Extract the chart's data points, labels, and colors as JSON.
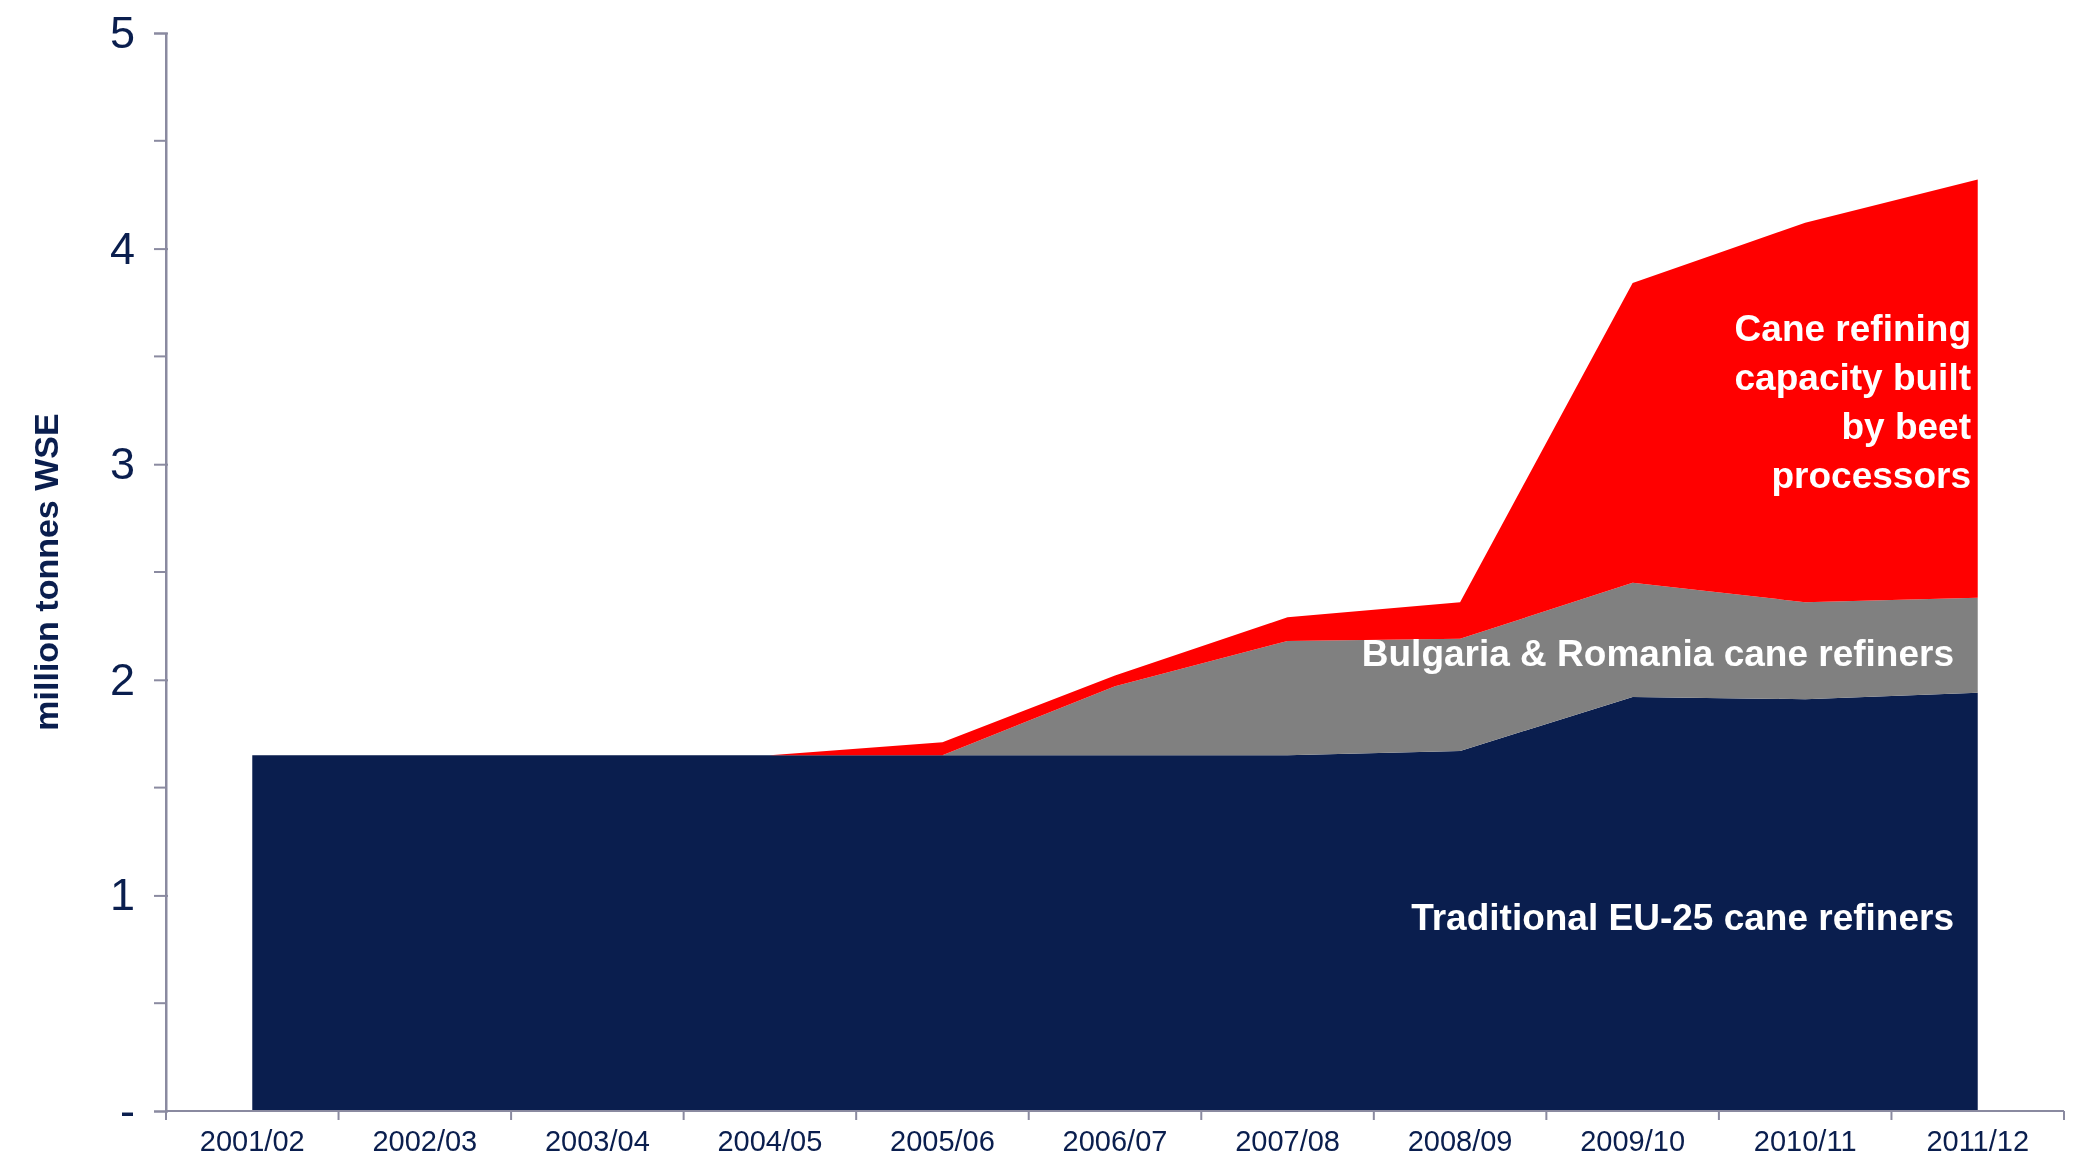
{
  "chart_data": {
    "type": "area",
    "stacked": true,
    "ylabel": "million tonnes WSE",
    "categories": [
      "2001/02",
      "2002/03",
      "2003/04",
      "2004/05",
      "2005/06",
      "2006/07",
      "2007/08",
      "2008/09",
      "2009/10",
      "2010/11",
      "2011/12"
    ],
    "series": [
      {
        "name": "Traditional EU-25 cane refiners",
        "color": "#0a1e4e",
        "values": [
          1.65,
          1.65,
          1.65,
          1.65,
          1.65,
          1.65,
          1.65,
          1.67,
          1.92,
          1.91,
          1.94
        ]
      },
      {
        "name": "Bulgaria & Romania cane refiners",
        "color": "#808080",
        "values": [
          0,
          0,
          0,
          0,
          0,
          0.32,
          0.53,
          0.52,
          0.53,
          0.45,
          0.44
        ]
      },
      {
        "name": "Cane refining capacity built by beet processors",
        "color": "#ff0000",
        "values": [
          0,
          0,
          0,
          0,
          0.06,
          0.05,
          0.11,
          0.17,
          1.39,
          1.76,
          1.94
        ]
      }
    ],
    "ylim": [
      0,
      5
    ],
    "yticks": [
      {
        "value": 0,
        "label": "-"
      },
      1,
      2,
      3,
      4,
      5
    ],
    "grid": false
  }
}
